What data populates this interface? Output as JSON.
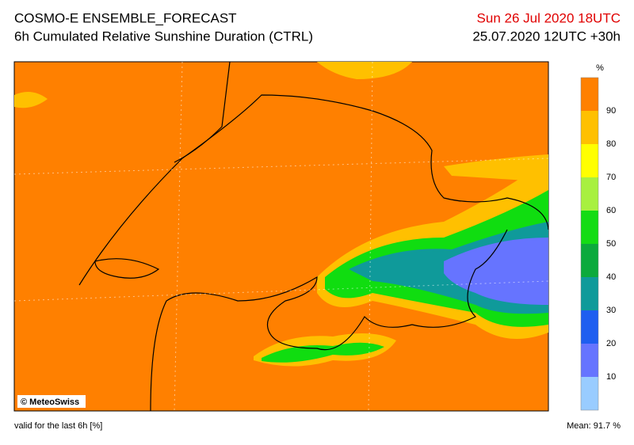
{
  "header": {
    "title": "COSMO-E ENSEMBLE_FORECAST",
    "subtitle": "6h Cumulated Relative Sunshine Duration (CTRL)",
    "valid_time": "Sun 26 Jul 2020 18UTC",
    "run": "25.07.2020 12UTC +30h"
  },
  "map": {
    "credit": "© MeteoSwiss"
  },
  "colorbar": {
    "unit": "%",
    "ticks": [
      10,
      20,
      30,
      40,
      50,
      60,
      70,
      80,
      90
    ],
    "range": [
      0,
      100
    ],
    "colors": [
      "#99ccff",
      "#6674ff",
      "#1e5ef0",
      "#0f9a9a",
      "#0caa3c",
      "#14dc14",
      "#a8f040",
      "#ffff00",
      "#ffc000",
      "#ff8000"
    ]
  },
  "footer": {
    "note": "valid for the last 6h [%]",
    "mean": "Mean:  91.7 %"
  }
}
